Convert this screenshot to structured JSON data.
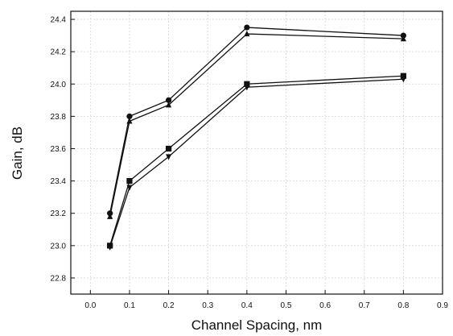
{
  "chart_data": {
    "type": "line",
    "title": "",
    "xlabel": "Channel Spacing,  nm",
    "ylabel": "Gain,  dB",
    "xlim": [
      -0.05,
      0.9
    ],
    "ylim": [
      22.7,
      24.45
    ],
    "x_ticks": [
      0.0,
      0.1,
      0.2,
      0.3,
      0.4,
      0.5,
      0.6,
      0.7,
      0.8,
      0.9
    ],
    "x_tick_labels": [
      "0.0",
      "0.1",
      "0.2",
      "0.3",
      "0.4",
      "0.5",
      "0.6",
      "0.7",
      "0.8",
      "0.9"
    ],
    "y_ticks": [
      22.8,
      23.0,
      23.2,
      23.4,
      23.6,
      23.8,
      24.0,
      24.2,
      24.4
    ],
    "y_tick_labels": [
      "22.8",
      "23.0",
      "23.2",
      "23.4",
      "23.6",
      "23.8",
      "24.0",
      "24.2",
      "24.4"
    ],
    "grid": true,
    "legend": "none",
    "x": [
      0.05,
      0.1,
      0.2,
      0.4,
      0.8
    ],
    "series": [
      {
        "values": [
          23.2,
          23.8,
          23.9,
          24.35,
          24.3
        ],
        "marker": "circle",
        "color": "#111111"
      },
      {
        "values": [
          23.18,
          23.77,
          23.87,
          24.31,
          24.28
        ],
        "marker": "triangle-up",
        "color": "#111111"
      },
      {
        "values": [
          23.0,
          23.4,
          23.6,
          24.0,
          24.05
        ],
        "marker": "square",
        "color": "#111111"
      },
      {
        "values": [
          22.99,
          23.36,
          23.55,
          23.98,
          24.03
        ],
        "marker": "triangle-down",
        "color": "#111111"
      }
    ]
  }
}
